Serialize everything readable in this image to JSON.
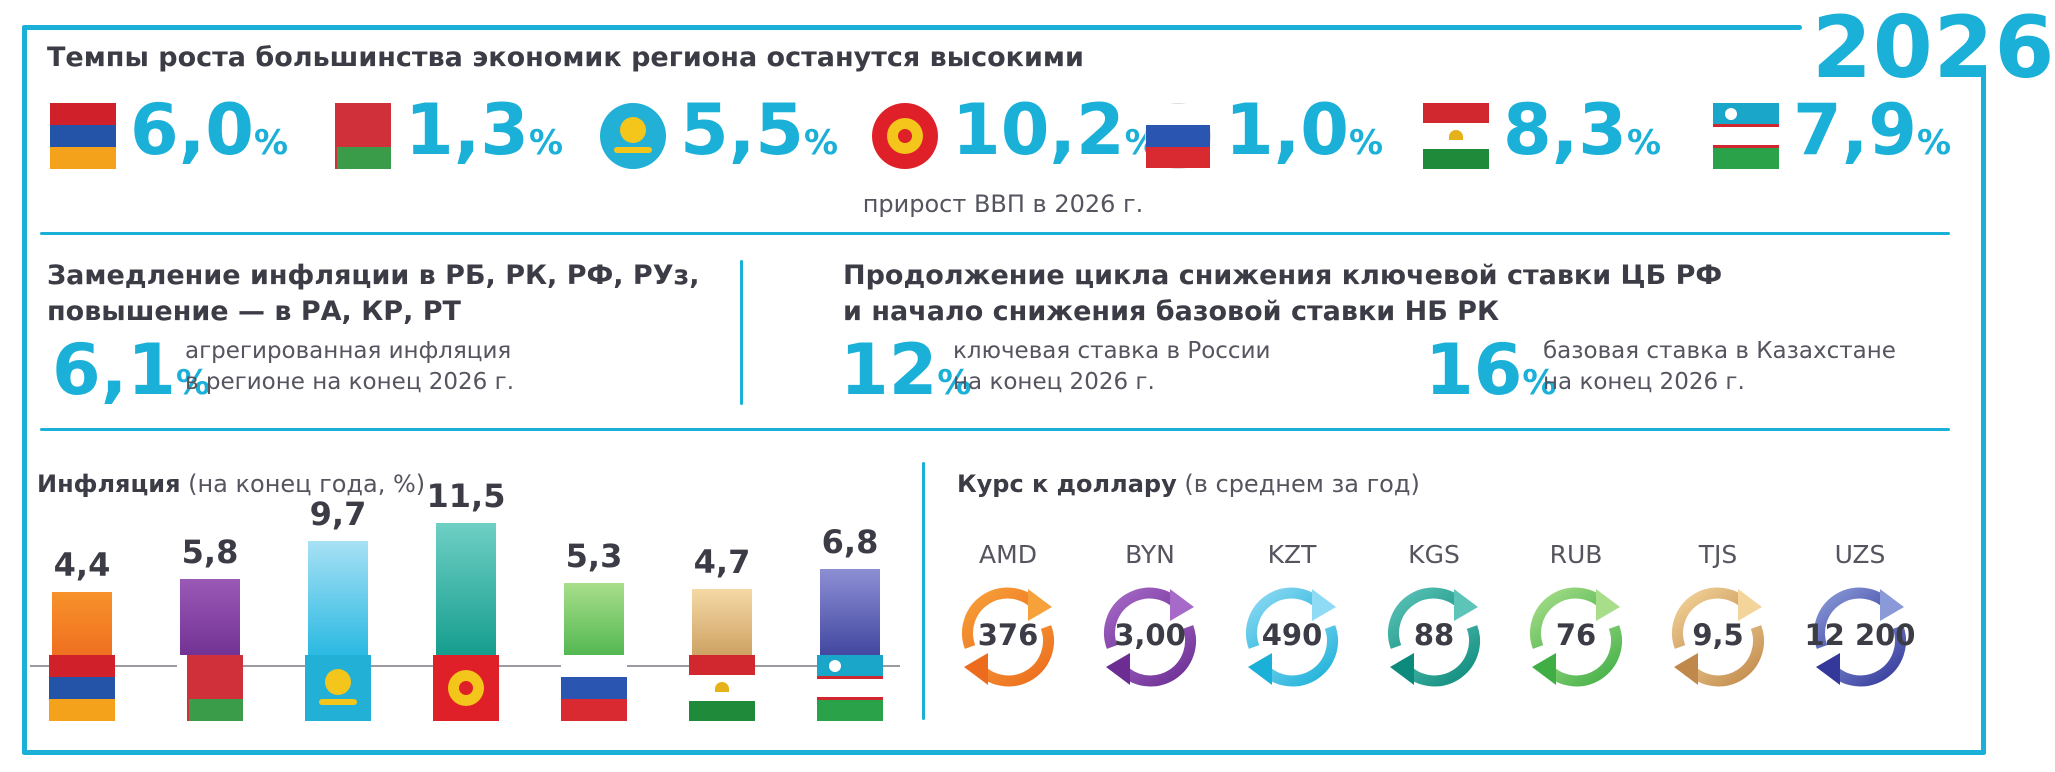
{
  "year": "2026",
  "gdp": {
    "title": "Темпы роста большинства экономик региона останутся высокими",
    "caption": "прирост ВВП в 2026 г.",
    "items": [
      {
        "country": "armenia-flag-icon",
        "value": "6,0",
        "unit": "%"
      },
      {
        "country": "belarus-flag-icon",
        "value": "1,3",
        "unit": "%"
      },
      {
        "country": "kazakhstan-flag-icon",
        "value": "5,5",
        "unit": "%"
      },
      {
        "country": "kyrgyzstan-flag-icon",
        "value": "10,2",
        "unit": "%"
      },
      {
        "country": "russia-flag-icon",
        "value": "1,0",
        "unit": "%"
      },
      {
        "country": "tajikistan-flag-icon",
        "value": "8,3",
        "unit": "%"
      },
      {
        "country": "uzbekistan-flag-icon",
        "value": "7,9",
        "unit": "%"
      }
    ]
  },
  "inflation_block": {
    "title_line1": "Замедление инфляции в РБ, РК, РФ, РУз,",
    "title_line2": "повышение — в РА, КР, РТ",
    "value": "6,1",
    "unit": "%",
    "note_line1": "агрегированная инфляция",
    "note_line2": "в регионе на конец 2026 г."
  },
  "rates_block": {
    "title_line1": "Продолжение цикла снижения ключевой ставки ЦБ РФ",
    "title_line2": "и начало снижения базовой ставки НБ РК",
    "russia": {
      "value": "12",
      "unit": "%",
      "note_line1": "ключевая ставка в России",
      "note_line2": "на конец 2026 г."
    },
    "kazakhstan": {
      "value": "16",
      "unit": "%",
      "note_line1": "базовая ставка в Казахстане",
      "note_line2": "на конец 2026 г."
    }
  },
  "chart_data": {
    "type": "bar",
    "title": "Инфляция",
    "subtitle": "(на конец года, %)",
    "categories": [
      "armenia-flag-icon",
      "belarus-flag-icon",
      "kazakhstan-flag-icon",
      "kyrgyzstan-flag-icon",
      "russia-flag-icon",
      "tajikistan-flag-icon",
      "uzbekistan-flag-icon"
    ],
    "values": [
      4.4,
      5.8,
      9.7,
      11.5,
      5.3,
      4.7,
      6.8
    ],
    "labels": [
      "4,4",
      "5,8",
      "9,7",
      "11,5",
      "5,3",
      "4,7",
      "6,8"
    ],
    "colors": [
      [
        "#f7922a",
        "#ee6a1f"
      ],
      [
        "#9b59b6",
        "#6c2e8f"
      ],
      [
        "#a8e1f5",
        "#20b6e0"
      ],
      [
        "#6fcfc5",
        "#0f9a8a"
      ],
      [
        "#a8de8a",
        "#48b34a"
      ],
      [
        "#f5d9a6",
        "#c89a5a"
      ],
      [
        "#8d8fd4",
        "#3a3f9a"
      ]
    ],
    "ylim": [
      0,
      12
    ]
  },
  "currency": {
    "title": "Курс к доллару",
    "subtitle": "(в среднем за год)",
    "items": [
      {
        "code": "AMD",
        "value": "376",
        "color_a": "#f7a13a",
        "color_b": "#ec6b1d"
      },
      {
        "code": "BYN",
        "value": "3,00",
        "color_a": "#a66ac8",
        "color_b": "#6b2d92"
      },
      {
        "code": "KZT",
        "value": "490",
        "color_a": "#8fdaf4",
        "color_b": "#1ab0d8"
      },
      {
        "code": "KGS",
        "value": "88",
        "color_a": "#5cc4b8",
        "color_b": "#0c8a7b"
      },
      {
        "code": "RUB",
        "value": "76",
        "color_a": "#a8de8a",
        "color_b": "#3fae45"
      },
      {
        "code": "TJS",
        "value": "9,5",
        "color_a": "#f3d49a",
        "color_b": "#c0884a"
      },
      {
        "code": "UZS",
        "value": "12 200",
        "color_a": "#8a9ad8",
        "color_b": "#33389a"
      }
    ]
  }
}
